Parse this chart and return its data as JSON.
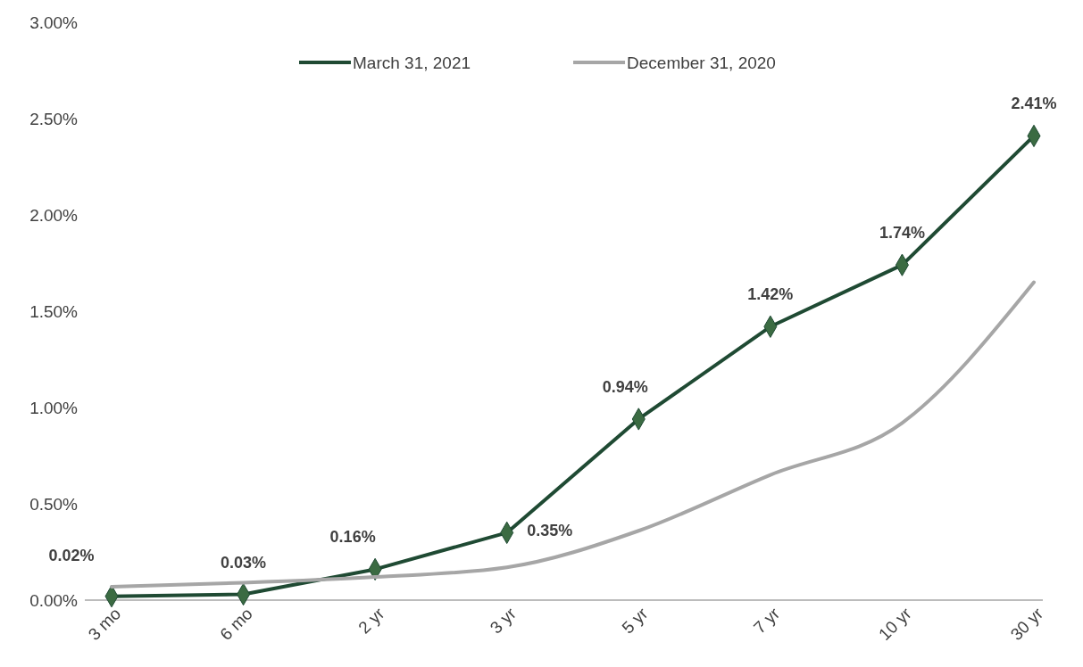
{
  "chart_data": {
    "type": "line",
    "categories": [
      "3 mo",
      "6 mo",
      "2 yr",
      "3 yr",
      "5 yr",
      "7 yr",
      "10 yr",
      "30 yr"
    ],
    "series": [
      {
        "name": "March 31, 2021",
        "color": "#1f4a33",
        "marker": "diamond",
        "values": [
          0.02,
          0.03,
          0.16,
          0.35,
          0.94,
          1.42,
          1.74,
          2.41
        ],
        "value_labels": [
          "0.02%",
          "0.03%",
          "0.16%",
          "0.35%",
          "0.94%",
          "1.42%",
          "1.74%",
          "2.41%"
        ]
      },
      {
        "name": "December 31, 2020",
        "color": "#a6a6a6",
        "marker": "none",
        "values": [
          0.07,
          0.09,
          0.12,
          0.17,
          0.36,
          0.65,
          0.92,
          1.65
        ]
      }
    ],
    "ylim": [
      0,
      3
    ],
    "yticks": [
      {
        "value": 0,
        "label": "0.00%"
      },
      {
        "value": 0.5,
        "label": "0.50%"
      },
      {
        "value": 1,
        "label": "1.00%"
      },
      {
        "value": 1.5,
        "label": "1.50%"
      },
      {
        "value": 2,
        "label": "2.00%"
      },
      {
        "value": 2.5,
        "label": "2.50%"
      },
      {
        "value": 3,
        "label": "3.00%"
      }
    ],
    "grid": false,
    "legend": "top"
  }
}
